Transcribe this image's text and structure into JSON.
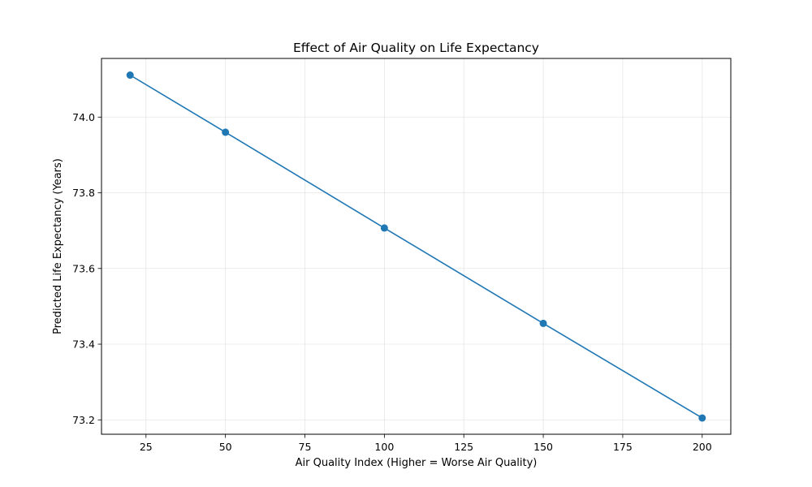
{
  "chart_data": {
    "type": "line",
    "title": "Effect of Air Quality on Life Expectancy",
    "xlabel": "Air Quality Index (Higher = Worse Air Quality)",
    "ylabel": "Predicted Life Expectancy (Years)",
    "xlim": [
      11,
      209
    ],
    "ylim": [
      73.162,
      74.155
    ],
    "xticks": [
      25,
      50,
      75,
      100,
      125,
      150,
      175,
      200
    ],
    "yticks": [
      73.2,
      73.4,
      73.6,
      73.8,
      74.0
    ],
    "xtick_labels": [
      "25",
      "50",
      "75",
      "100",
      "125",
      "150",
      "175",
      "200"
    ],
    "ytick_labels": [
      "73.2",
      "73.4",
      "73.6",
      "73.8",
      "74.0"
    ],
    "grid": true,
    "legend": false,
    "marker": "circle",
    "series": [
      {
        "color": "#1f77b4",
        "x": [
          20,
          50,
          100,
          150,
          200
        ],
        "y": [
          74.111,
          73.96,
          73.707,
          73.455,
          73.205
        ]
      }
    ]
  }
}
